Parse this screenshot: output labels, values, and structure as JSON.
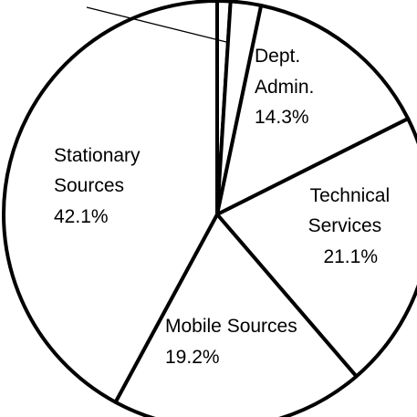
{
  "chart_data": {
    "type": "pie",
    "title": "",
    "start_angle_deg": 0,
    "direction": "clockwise",
    "slices": [
      {
        "label": "",
        "value": 1.0
      },
      {
        "label": "",
        "value": 2.3
      },
      {
        "label": "Dept. Admin.",
        "label_lines": [
          "Dept.",
          "Admin."
        ],
        "value_text": "14.3%",
        "value": 14.3
      },
      {
        "label": "Technical Services",
        "label_lines": [
          "Technical",
          "Services"
        ],
        "value_text": "21.1%",
        "value": 21.1
      },
      {
        "label": "Mobile Sources",
        "label_lines": [
          "Mobile Sources"
        ],
        "value_text": "19.2%",
        "value": 19.2
      },
      {
        "label": "Stationary Sources",
        "label_lines": [
          "Stationary",
          "Sources"
        ],
        "value_text": "42.1%",
        "value": 42.1
      }
    ],
    "colors": {
      "fill": "#ffffff",
      "stroke": "#000000",
      "text": "#000000"
    }
  }
}
